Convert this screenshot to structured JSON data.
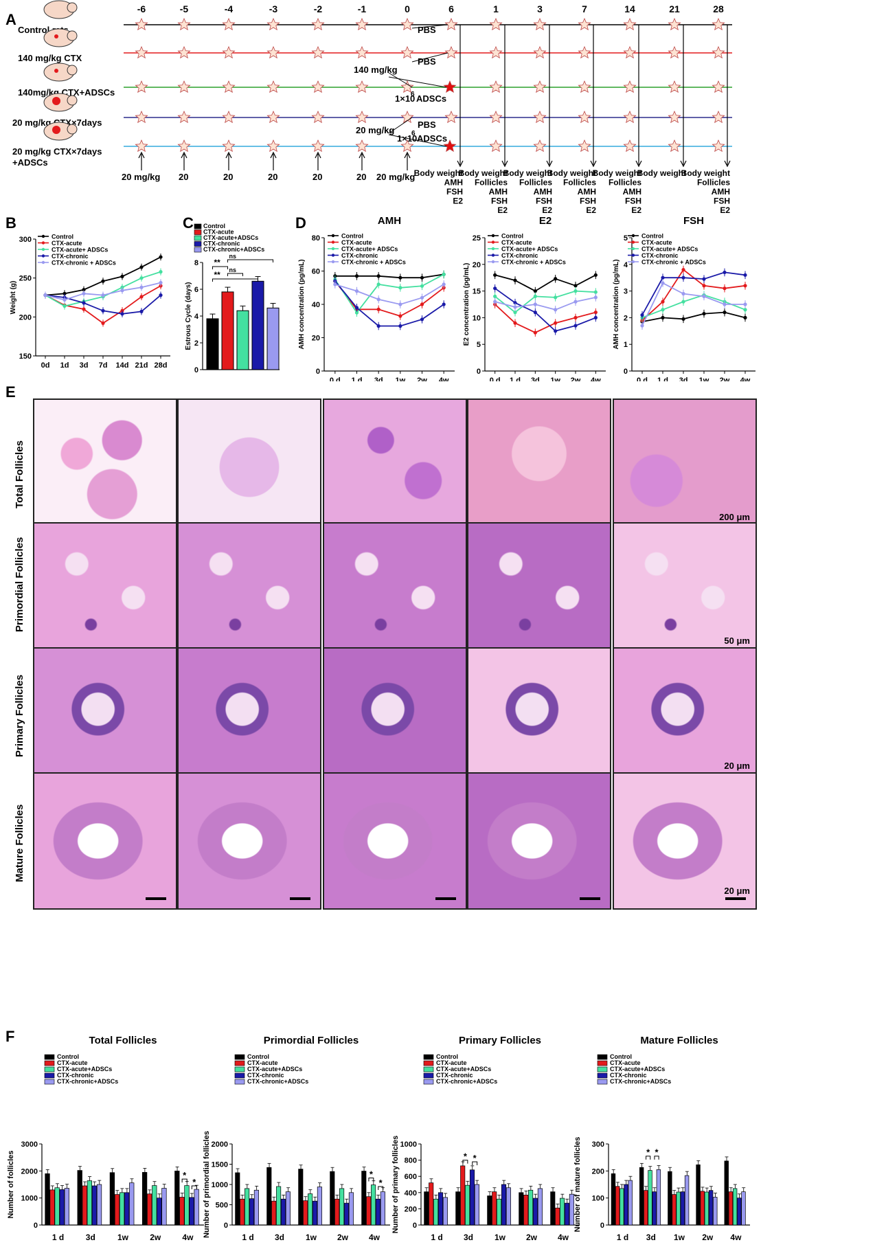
{
  "panels": {
    "A": "A",
    "B": "B",
    "C": "C",
    "D": "D",
    "E": "E",
    "F": "F"
  },
  "timeline": {
    "ticks": [
      "-6",
      "-5",
      "-4",
      "-3",
      "-2",
      "-1",
      "0",
      "6",
      "1",
      "3",
      "7",
      "14",
      "21",
      "28"
    ],
    "groups": [
      {
        "label": "Control rats",
        "color": "#000000"
      },
      {
        "label": "140 mg/kg CTX",
        "color": "#e31a1c"
      },
      {
        "label": "140mg/kg CTX+ADSCs",
        "color": "#2ca02c"
      },
      {
        "label": "20 mg/kg CTX×7days",
        "color": "#2c2c8c"
      },
      {
        "label": "20 mg/kg CTX×7days",
        "label2": "+ADSCs",
        "color": "#33aadd"
      }
    ],
    "annotations": {
      "pbs": "PBS",
      "dose140": "140 mg/kg",
      "adsc": "1×10",
      "adsc_exp": "6",
      "adsc_unit": "ADSCs",
      "dose20": "20 mg/kg"
    },
    "bottom_doses": [
      "20 mg/kg",
      "20",
      "20",
      "20",
      "20",
      "20",
      "20 mg/kg"
    ],
    "measurements": [
      [
        "Body weight",
        "AMH",
        "FSH",
        "E2"
      ],
      [
        "Body weight",
        "Follicles",
        "AMH",
        "FSH",
        "E2"
      ],
      [
        "Body weight",
        "Follicles",
        "AMH",
        "FSH",
        "E2"
      ],
      [
        "Body weight",
        "Follicles",
        "AMH",
        "FSH",
        "E2"
      ],
      [
        "Body weight",
        "Follicles",
        "AMH",
        "FSH",
        "E2"
      ],
      [
        "Body weight"
      ],
      [
        "Body weight",
        "Follicles",
        "AMH",
        "FSH",
        "E2"
      ]
    ]
  },
  "series_colors": {
    "Control": "#000000",
    "CTX-acute": "#e31a1c",
    "CTX-acute+ADSCs": "#44e0a0",
    "CTX-chronic": "#1a1aa8",
    "CTX-chronic+ADSCs": "#9a9af0"
  },
  "chart_data": [
    {
      "id": "B",
      "type": "line",
      "ylabel": "Weight (g)",
      "ylim": [
        150,
        300
      ],
      "yticks": [
        150,
        200,
        250,
        300
      ],
      "x": [
        "0d",
        "1d",
        "3d",
        "7d",
        "14d",
        "21d",
        "28d"
      ],
      "series": [
        {
          "name": "Control",
          "values": [
            228,
            230,
            235,
            246,
            252,
            264,
            277
          ]
        },
        {
          "name": "CTX-acute",
          "values": [
            228,
            215,
            210,
            192,
            208,
            226,
            240
          ]
        },
        {
          "name": "CTX-acute+ ADSCs",
          "values": [
            228,
            214,
            220,
            226,
            238,
            250,
            258
          ]
        },
        {
          "name": "CTX-chronic",
          "values": [
            228,
            225,
            218,
            208,
            204,
            207,
            228
          ]
        },
        {
          "name": "CTX-chronic + ADSCs",
          "values": [
            228,
            222,
            230,
            228,
            234,
            238,
            244
          ]
        }
      ]
    },
    {
      "id": "C",
      "type": "bar",
      "ylabel": "Estrous Cycle (days)",
      "ylim": [
        0,
        8
      ],
      "yticks": [
        0,
        2,
        4,
        6,
        8
      ],
      "series": [
        {
          "name": "Control",
          "values": [
            3.8
          ]
        },
        {
          "name": "CTX-acute",
          "values": [
            5.8
          ]
        },
        {
          "name": "CTX-acute+ADSCs",
          "values": [
            4.4
          ]
        },
        {
          "name": "CTX-chronic",
          "values": [
            6.6
          ]
        },
        {
          "name": "CTX-chronic+ADSCs",
          "values": [
            4.6
          ]
        }
      ],
      "significance": [
        "ns",
        "**",
        "ns",
        "**"
      ]
    },
    {
      "id": "D-AMH",
      "type": "line",
      "title": "AMH",
      "ylabel": "AMH concentration (pg/mL)",
      "ylim": [
        0,
        80
      ],
      "yticks": [
        0,
        20,
        40,
        60,
        80
      ],
      "x": [
        "0 d",
        "1 d",
        "3d",
        "1w",
        "2w",
        "4w"
      ],
      "series": [
        {
          "name": "Control",
          "values": [
            57,
            57,
            57,
            56,
            56,
            58
          ]
        },
        {
          "name": "CTX-acute",
          "values": [
            54,
            37,
            37,
            33,
            40,
            50
          ]
        },
        {
          "name": "CTX-acute+ ADSCs",
          "values": [
            55,
            35,
            52,
            50,
            51,
            58
          ]
        },
        {
          "name": "CTX-chronic",
          "values": [
            54,
            38,
            27,
            27,
            31,
            40
          ]
        },
        {
          "name": "CTX-chronic + ADSCs",
          "values": [
            52,
            48,
            43,
            40,
            44,
            52
          ]
        }
      ]
    },
    {
      "id": "D-E2",
      "type": "line",
      "title": "E2",
      "ylabel": "E2 concentration (pg/mL)",
      "ylim": [
        0,
        25
      ],
      "yticks": [
        0,
        5,
        10,
        15,
        20,
        25
      ],
      "x": [
        "0 d",
        "1 d",
        "3d",
        "1w",
        "2w",
        "4w"
      ],
      "series": [
        {
          "name": "Control",
          "values": [
            18,
            17,
            15,
            17.3,
            16,
            18
          ]
        },
        {
          "name": "CTX-acute",
          "values": [
            12.5,
            9,
            7.2,
            9,
            10,
            11
          ]
        },
        {
          "name": "CTX-acute+ ADSCs",
          "values": [
            14,
            11,
            14,
            13.8,
            15,
            14.8
          ]
        },
        {
          "name": "CTX-chronic",
          "values": [
            15.5,
            12.8,
            11,
            7.5,
            8.5,
            10
          ]
        },
        {
          "name": "CTX-chronic + ADSCs",
          "values": [
            13,
            12,
            12.5,
            11.5,
            13,
            13.8
          ]
        }
      ]
    },
    {
      "id": "D-FSH",
      "type": "line",
      "title": "FSH",
      "ylabel": "AMH concentration (pg/mL)",
      "ylim": [
        0,
        5
      ],
      "yticks": [
        0,
        1,
        2,
        3,
        4,
        5
      ],
      "x": [
        "0 d",
        "1 d",
        "3d",
        "1w",
        "2w",
        "4w"
      ],
      "series": [
        {
          "name": "Control",
          "values": [
            1.85,
            2,
            1.95,
            2.15,
            2.2,
            2
          ]
        },
        {
          "name": "CTX-acute",
          "values": [
            1.9,
            2.6,
            3.8,
            3.2,
            3.1,
            3.2
          ]
        },
        {
          "name": "CTX-acute+ ADSCs",
          "values": [
            2,
            2.3,
            2.6,
            2.85,
            2.6,
            2.3
          ]
        },
        {
          "name": "CTX-chronic",
          "values": [
            2.1,
            3.5,
            3.5,
            3.45,
            3.7,
            3.6
          ]
        },
        {
          "name": "CTX-chronic + ADSCs",
          "values": [
            1.7,
            3.3,
            2.9,
            2.8,
            2.5,
            2.5
          ]
        }
      ]
    },
    {
      "id": "F-total",
      "type": "bar",
      "title": "Total Follicles",
      "ylabel": "Number of follicles",
      "ylim": [
        0,
        3000
      ],
      "yticks": [
        0,
        1000,
        2000,
        3000
      ],
      "categories": [
        "1 d",
        "3d",
        "1w",
        "2w",
        "4w"
      ],
      "series": [
        {
          "name": "Control",
          "values": [
            1900,
            2020,
            1940,
            1950,
            2000
          ]
        },
        {
          "name": "CTX-acute",
          "values": [
            1300,
            1450,
            1130,
            1150,
            1030
          ]
        },
        {
          "name": "CTX-acute+ADSCs",
          "values": [
            1380,
            1640,
            1200,
            1460,
            1460
          ]
        },
        {
          "name": "CTX-chronic",
          "values": [
            1310,
            1450,
            1200,
            1000,
            1020
          ]
        },
        {
          "name": "CTX-chronic+ADSCs",
          "values": [
            1360,
            1500,
            1560,
            1360,
            1320
          ]
        }
      ]
    },
    {
      "id": "F-primordial",
      "type": "bar",
      "title": "Primordial Follicles",
      "ylabel": "Number of primordial follicles",
      "ylim": [
        0,
        2000
      ],
      "yticks": [
        0,
        500,
        1000,
        1500,
        2000
      ],
      "categories": [
        "1 d",
        "3d",
        "1w",
        "2w",
        "4w"
      ],
      "series": [
        {
          "name": "Control",
          "values": [
            1290,
            1420,
            1380,
            1320,
            1330
          ]
        },
        {
          "name": "CTX-acute",
          "values": [
            640,
            590,
            600,
            640,
            700
          ]
        },
        {
          "name": "CTX-acute+ADSCs",
          "values": [
            900,
            950,
            770,
            900,
            990
          ]
        },
        {
          "name": "CTX-chronic",
          "values": [
            650,
            640,
            590,
            540,
            640
          ]
        },
        {
          "name": "CTX-chronic+ADSCs",
          "values": [
            860,
            820,
            940,
            800,
            820
          ]
        }
      ]
    },
    {
      "id": "F-primary",
      "type": "bar",
      "title": "Primary Follicles",
      "ylabel": "Number of primary follicles",
      "ylim": [
        0,
        1000
      ],
      "yticks": [
        0,
        200,
        400,
        600,
        800,
        1000
      ],
      "categories": [
        "1 d",
        "3d",
        "1w",
        "2w",
        "4w"
      ],
      "series": [
        {
          "name": "Control",
          "values": [
            410,
            410,
            360,
            400,
            410
          ]
        },
        {
          "name": "CTX-acute",
          "values": [
            520,
            730,
            410,
            370,
            210
          ]
        },
        {
          "name": "CTX-acute+ADSCs",
          "values": [
            320,
            490,
            320,
            430,
            330
          ]
        },
        {
          "name": "CTX-chronic",
          "values": [
            400,
            680,
            500,
            330,
            270
          ]
        },
        {
          "name": "CTX-chronic+ADSCs",
          "values": [
            340,
            500,
            460,
            450,
            380
          ]
        }
      ]
    },
    {
      "id": "F-mature",
      "type": "bar",
      "title": "Mature Follicles",
      "ylabel": "Number of mature follicles",
      "ylim": [
        0,
        300
      ],
      "yticks": [
        0,
        100,
        200,
        300
      ],
      "categories": [
        "1 d",
        "3d",
        "1w",
        "2w",
        "4w"
      ],
      "series": [
        {
          "name": "Control",
          "values": [
            190,
            213,
            198,
            223,
            237
          ]
        },
        {
          "name": "CTX-acute",
          "values": [
            143,
            128,
            113,
            125,
            123
          ]
        },
        {
          "name": "CTX-acute+ADSCs",
          "values": [
            135,
            202,
            122,
            122,
            135
          ]
        },
        {
          "name": "CTX-chronic",
          "values": [
            150,
            123,
            123,
            128,
            100
          ]
        },
        {
          "name": "CTX-chronic+ADSCs",
          "values": [
            165,
            205,
            183,
            103,
            123
          ]
        }
      ]
    }
  ],
  "histology": {
    "columns": [
      "Control",
      "CTX-acute",
      "CTX-acute+ADSCs",
      "CTX-chronic",
      "CTX-chronic+ADSCs"
    ],
    "rows": [
      "Total Follicles",
      "Primordial Follicles",
      "Primary Follicles",
      "Mature Follicles"
    ],
    "scale_labels": [
      "200 μm",
      "50 μm",
      "20 μm",
      "20 μm"
    ]
  },
  "stars": {
    "asterisk": "*"
  }
}
